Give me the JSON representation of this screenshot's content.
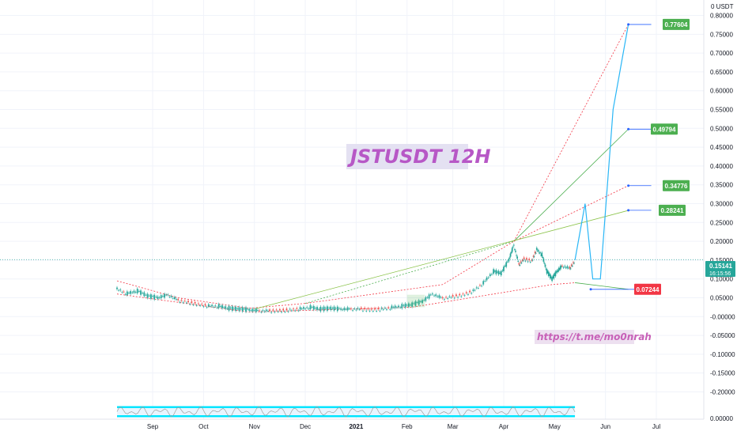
{
  "chart_data": {
    "type": "candlestick",
    "title": "JSTUSDT 12H",
    "annotation_link": "https://t.me/mo0nrah",
    "y_unit": "USDT",
    "ylim": [
      -0.22,
      0.82
    ],
    "y_ticks": [
      "0.80000",
      "0.75000",
      "0.70000",
      "0.65000",
      "0.60000",
      "0.55000",
      "0.50000",
      "0.45000",
      "0.40000",
      "0.35000",
      "0.30000",
      "0.25000",
      "0.20000",
      "0.15000",
      "0.10000",
      "0.05000",
      "-0.00000",
      "-0.05000",
      "-0.10000",
      "-0.15000",
      "-0.20000"
    ],
    "x_ticks": [
      {
        "label": "Sep",
        "t": 1.5
      },
      {
        "label": "Oct",
        "t": 2.5
      },
      {
        "label": "Nov",
        "t": 3.5
      },
      {
        "label": "Dec",
        "t": 4.5
      },
      {
        "label": "2021",
        "t": 5.5,
        "bold": true
      },
      {
        "label": "Feb",
        "t": 6.5
      },
      {
        "label": "Mar",
        "t": 7.4
      },
      {
        "label": "Apr",
        "t": 8.4
      },
      {
        "label": "May",
        "t": 9.4
      },
      {
        "label": "Jun",
        "t": 10.4
      },
      {
        "label": "Jul",
        "t": 11.4
      }
    ],
    "current_price": {
      "value": "0.15141",
      "countdown": "16:15:56",
      "y": 0.15141
    },
    "targets": [
      {
        "label": "0.77604",
        "value": 0.77604,
        "color": "#4caf50"
      },
      {
        "label": "0.49794",
        "value": 0.49794,
        "color": "#4caf50"
      },
      {
        "label": "0.34776",
        "value": 0.34776,
        "color": "#4caf50"
      },
      {
        "label": "0.28241",
        "value": 0.28241,
        "color": "#4caf50"
      },
      {
        "label": "0.07244",
        "value": 0.07244,
        "color": "#f23645"
      }
    ],
    "price_path": [
      [
        0.8,
        0.075
      ],
      [
        1.0,
        0.062
      ],
      [
        1.2,
        0.068
      ],
      [
        1.4,
        0.055
      ],
      [
        1.6,
        0.05
      ],
      [
        1.8,
        0.058
      ],
      [
        2.0,
        0.045
      ],
      [
        2.2,
        0.04
      ],
      [
        2.4,
        0.035
      ],
      [
        2.6,
        0.03
      ],
      [
        2.8,
        0.028
      ],
      [
        3.0,
        0.022
      ],
      [
        3.2,
        0.02
      ],
      [
        3.4,
        0.018
      ],
      [
        3.6,
        0.016
      ],
      [
        3.8,
        0.017
      ],
      [
        4.0,
        0.018
      ],
      [
        4.2,
        0.02
      ],
      [
        4.4,
        0.022
      ],
      [
        4.6,
        0.025
      ],
      [
        4.8,
        0.02
      ],
      [
        5.0,
        0.022
      ],
      [
        5.2,
        0.02
      ],
      [
        5.4,
        0.021
      ],
      [
        5.6,
        0.022
      ],
      [
        5.8,
        0.02
      ],
      [
        6.0,
        0.022
      ],
      [
        6.2,
        0.025
      ],
      [
        6.4,
        0.028
      ],
      [
        6.6,
        0.032
      ],
      [
        6.8,
        0.04
      ],
      [
        7.0,
        0.06
      ],
      [
        7.2,
        0.05
      ],
      [
        7.4,
        0.055
      ],
      [
        7.6,
        0.06
      ],
      [
        7.8,
        0.07
      ],
      [
        8.0,
        0.09
      ],
      [
        8.2,
        0.12
      ],
      [
        8.35,
        0.115
      ],
      [
        8.5,
        0.15
      ],
      [
        8.6,
        0.19
      ],
      [
        8.7,
        0.14
      ],
      [
        8.8,
        0.155
      ],
      [
        8.95,
        0.15
      ],
      [
        9.05,
        0.18
      ],
      [
        9.15,
        0.165
      ],
      [
        9.25,
        0.12
      ],
      [
        9.35,
        0.1
      ],
      [
        9.45,
        0.12
      ],
      [
        9.55,
        0.135
      ],
      [
        9.7,
        0.13
      ],
      [
        9.8,
        0.15
      ]
    ],
    "projection_path": [
      [
        9.8,
        0.15
      ],
      [
        10.0,
        0.3
      ],
      [
        10.15,
        0.1
      ],
      [
        10.3,
        0.1
      ],
      [
        10.55,
        0.55
      ],
      [
        10.85,
        0.776
      ]
    ],
    "oscillator": {
      "label": "0.00000",
      "ylim": [
        0,
        100
      ],
      "upper": 80,
      "lower": 20
    }
  }
}
